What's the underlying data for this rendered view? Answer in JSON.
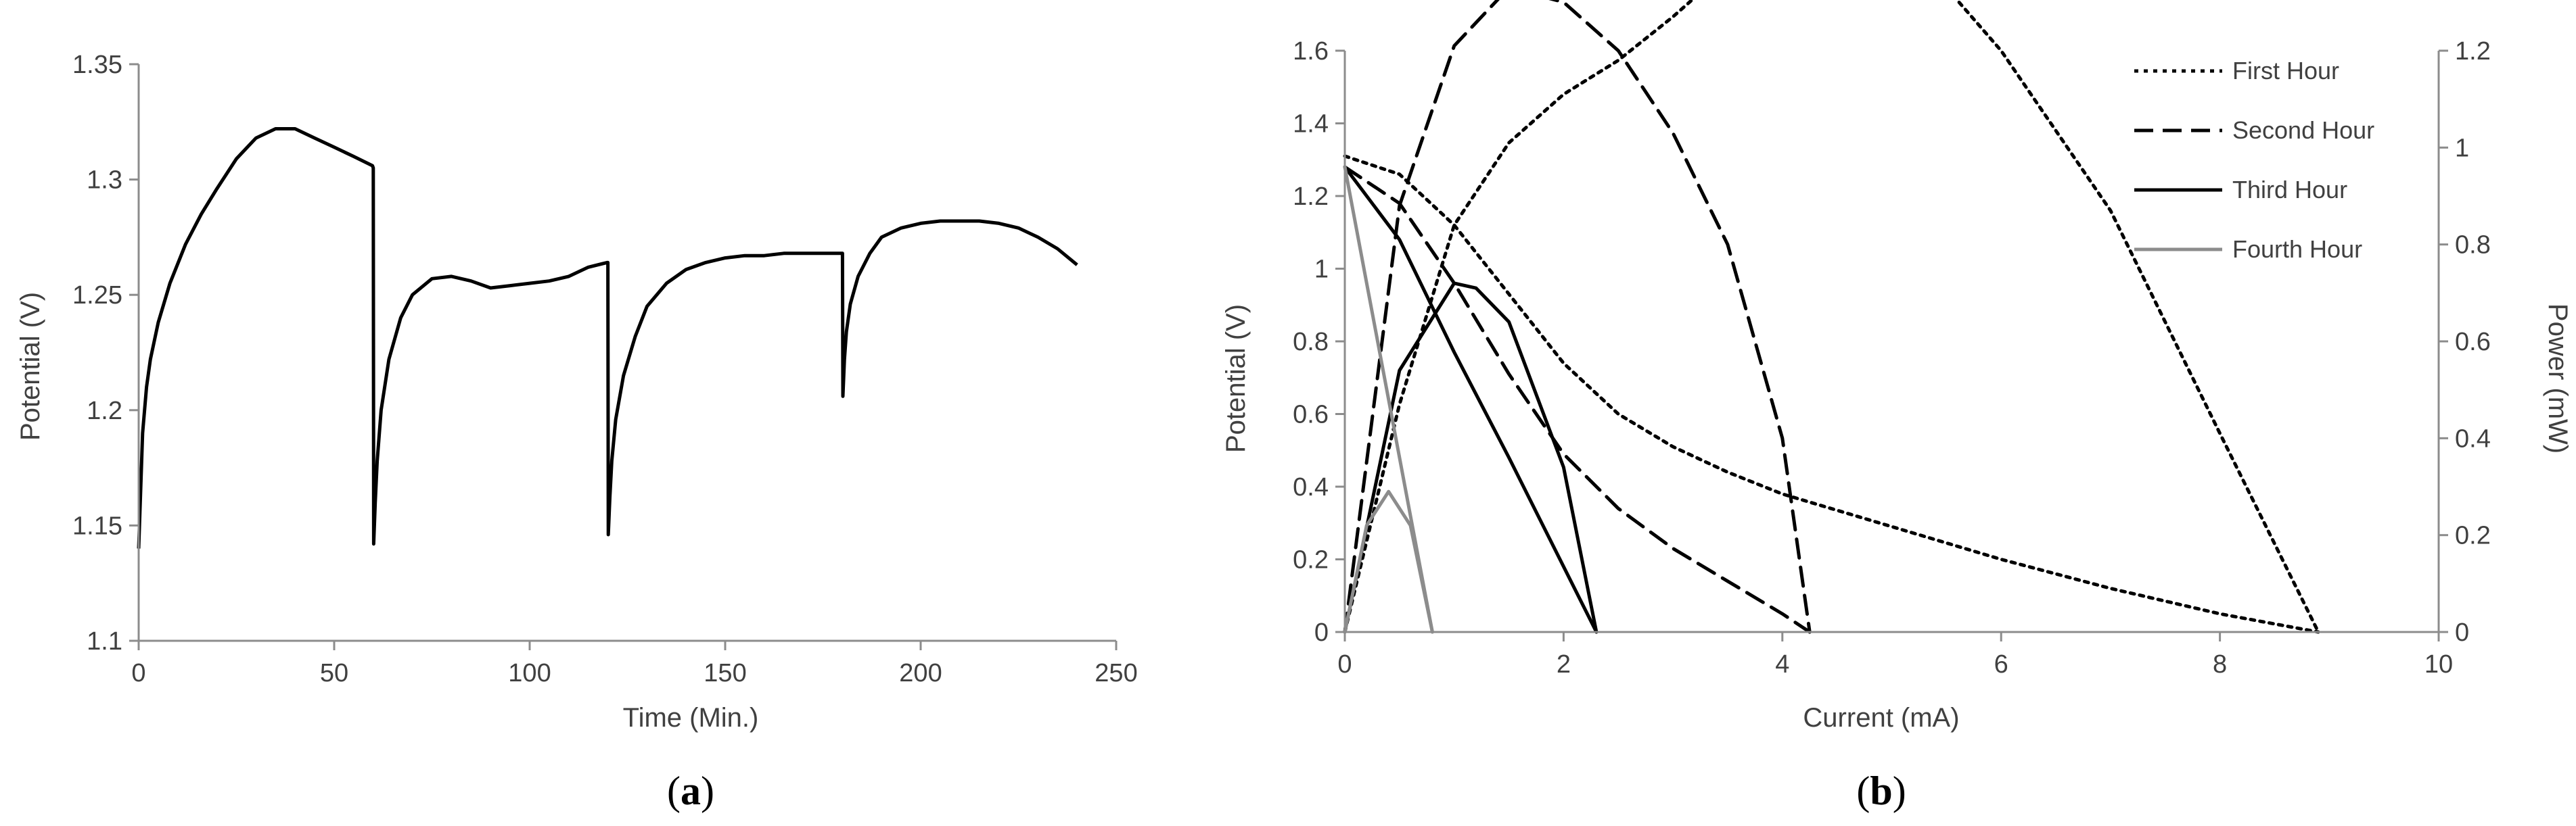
{
  "chart_data": [
    {
      "type": "line",
      "caption_open": "(",
      "caption_letter": "a",
      "caption_close": ")",
      "title": "",
      "xlabel": "Time (Min.)",
      "ylabel": "Potential (V)",
      "xlim": [
        0,
        250
      ],
      "ylim": [
        1.1,
        1.35
      ],
      "xticks": [
        0,
        50,
        100,
        150,
        200,
        250
      ],
      "xtick_labels": [
        "0",
        "50",
        "100",
        "150",
        "200",
        "250"
      ],
      "yticks": [
        1.1,
        1.15,
        1.2,
        1.25,
        1.3,
        1.35
      ],
      "ytick_labels": [
        "1.1",
        "1.15",
        "1.2",
        "1.25",
        "1.3",
        "1.35"
      ],
      "grid": false,
      "color": "#000000",
      "series": [
        {
          "x": [
            0,
            0.5,
            1,
            2,
            3,
            5,
            8,
            12,
            16,
            20,
            25,
            30,
            35,
            40,
            45,
            50,
            55,
            59.8,
            60,
            60.1,
            60.5,
            61,
            62,
            64,
            67,
            70,
            75,
            80,
            85,
            90,
            95,
            100,
            105,
            110,
            115,
            119.8,
            120,
            120.1,
            120.5,
            121,
            122,
            124,
            127,
            130,
            135,
            140,
            145,
            150,
            155,
            160,
            165,
            170,
            175,
            179.8,
            180,
            180.1,
            180.5,
            181,
            182,
            184,
            187,
            190,
            195,
            200,
            205,
            210,
            215,
            220,
            225,
            230,
            235,
            240
          ],
          "y": [
            1.14,
            1.165,
            1.19,
            1.21,
            1.222,
            1.238,
            1.255,
            1.272,
            1.285,
            1.296,
            1.309,
            1.318,
            1.322,
            1.322,
            1.318,
            1.314,
            1.31,
            1.306,
            1.305,
            1.142,
            1.16,
            1.178,
            1.2,
            1.222,
            1.24,
            1.25,
            1.257,
            1.258,
            1.256,
            1.253,
            1.254,
            1.255,
            1.256,
            1.258,
            1.262,
            1.264,
            1.264,
            1.146,
            1.162,
            1.178,
            1.196,
            1.215,
            1.232,
            1.245,
            1.255,
            1.261,
            1.264,
            1.266,
            1.267,
            1.267,
            1.268,
            1.268,
            1.268,
            1.268,
            1.268,
            1.206,
            1.222,
            1.234,
            1.246,
            1.258,
            1.268,
            1.275,
            1.279,
            1.281,
            1.282,
            1.282,
            1.282,
            1.281,
            1.279,
            1.275,
            1.27,
            1.263
          ]
        }
      ]
    },
    {
      "type": "line",
      "caption_open": "(",
      "caption_letter": "b",
      "caption_close": ")",
      "title": "",
      "xlabel": "Current (mA)",
      "ylabel": "Potential (V)",
      "y2label": "Power (mW)",
      "xlim": [
        0,
        10
      ],
      "ylim": [
        0,
        1.6
      ],
      "y2lim": [
        0,
        1.2
      ],
      "xticks": [
        0,
        2,
        4,
        6,
        8,
        10
      ],
      "xtick_labels": [
        "0",
        "2",
        "4",
        "6",
        "8",
        "10"
      ],
      "yticks": [
        0,
        0.2,
        0.4,
        0.6,
        0.8,
        1.0,
        1.2,
        1.4,
        1.6
      ],
      "ytick_labels": [
        "0",
        "0.2",
        "0.4",
        "0.6",
        "0.8",
        "1",
        "1.2",
        "1.4",
        "1.6"
      ],
      "y2ticks": [
        0,
        0.2,
        0.4,
        0.6,
        0.8,
        1.0,
        1.2
      ],
      "y2tick_labels": [
        "0",
        "0.2",
        "0.4",
        "0.6",
        "0.8",
        "1",
        "1.2"
      ],
      "grid": false,
      "legend_position": "top-right",
      "series": [
        {
          "name": "First Hour",
          "color": "#000000",
          "dash": "dotted",
          "polarization": {
            "x": [
              0,
              0.5,
              1.0,
              1.5,
              2.0,
              2.5,
              3.0,
              3.5,
              4.0,
              5.0,
              6.0,
              7.0,
              8.0,
              8.9
            ],
            "y": [
              1.31,
              1.26,
              1.12,
              0.93,
              0.74,
              0.6,
              0.51,
              0.44,
              0.38,
              0.29,
              0.2,
              0.12,
              0.05,
              0.0
            ]
          },
          "power": {
            "x": [
              0,
              0.5,
              1.0,
              1.5,
              2.0,
              2.5,
              3.0,
              3.5,
              4.0,
              5.0,
              6.0,
              7.0,
              8.0,
              8.9
            ],
            "y": [
              0,
              0.47,
              0.84,
              1.01,
              1.11,
              1.18,
              1.27,
              1.37,
              1.5,
              1.46,
              1.2,
              0.87,
              0.41,
              0.0
            ]
          }
        },
        {
          "name": "Second Hour",
          "color": "#000000",
          "dash": "dashed",
          "polarization": {
            "x": [
              0,
              0.5,
              1.0,
              1.5,
              2.0,
              2.5,
              3.0,
              3.5,
              4.0,
              4.25
            ],
            "y": [
              1.28,
              1.18,
              0.96,
              0.71,
              0.49,
              0.34,
              0.23,
              0.14,
              0.05,
              0.0
            ]
          },
          "power": {
            "x": [
              0,
              0.5,
              1.0,
              1.5,
              2.0,
              2.5,
              3.0,
              3.5,
              4.0,
              4.25
            ],
            "y": [
              0,
              0.88,
              1.21,
              1.33,
              1.3,
              1.2,
              1.03,
              0.8,
              0.4,
              0.0
            ]
          }
        },
        {
          "name": "Third Hour",
          "color": "#000000",
          "dash": "solid",
          "polarization": {
            "x": [
              0,
              0.5,
              1.0,
              1.5,
              2.0,
              2.3
            ],
            "y": [
              1.28,
              1.08,
              0.77,
              0.48,
              0.18,
              0.0
            ]
          },
          "power": {
            "x": [
              0,
              0.5,
              1.0,
              1.2,
              1.5,
              2.0,
              2.3
            ],
            "y": [
              0,
              0.54,
              0.72,
              0.71,
              0.64,
              0.34,
              0.0
            ]
          }
        },
        {
          "name": "Fourth Hour",
          "color": "#8c8c8c",
          "dash": "solid",
          "polarization": {
            "x": [
              0,
              0.2,
              0.4,
              0.6,
              0.8
            ],
            "y": [
              1.28,
              0.96,
              0.64,
              0.32,
              0.0
            ]
          },
          "power": {
            "x": [
              0,
              0.2,
              0.4,
              0.6,
              0.8
            ],
            "y": [
              0,
              0.22,
              0.29,
              0.22,
              0.0
            ]
          }
        }
      ]
    }
  ]
}
